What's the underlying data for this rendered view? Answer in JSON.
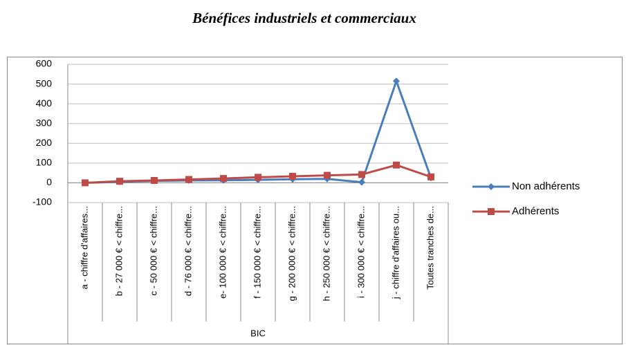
{
  "chart_data": {
    "type": "line",
    "title": "Bénéfices industriels et commerciaux",
    "categories": [
      "a - chiffre d'affaires...",
      "b - 27 000 € < chiffre...",
      "c - 50 000 € < chiffre...",
      "d - 76 000 € < chiffre...",
      "e- 100 000 € < chiffre...",
      "f - 150 000 € < chiffre...",
      "g - 200 000 € < chiffre...",
      "h - 250 000 € < chiffre...",
      "i - 300 000 € < chiffre...",
      "j - chiffre d'affaires ou...",
      "Toutes tranches de..."
    ],
    "group": "BIC",
    "series": [
      {
        "name": "Non adhérents",
        "color": "#4a7ebb",
        "marker": "diamond",
        "values": [
          0,
          5,
          10,
          12,
          13,
          15,
          18,
          20,
          3,
          515,
          25
        ]
      },
      {
        "name": "Adhérents",
        "color": "#be4b48",
        "marker": "square",
        "values": [
          0,
          8,
          12,
          17,
          22,
          28,
          33,
          38,
          42,
          90,
          30
        ]
      }
    ],
    "ylim": [
      -100,
      600
    ],
    "yticks": [
      -100,
      0,
      100,
      200,
      300,
      400,
      500,
      600
    ],
    "grid": true,
    "legend": "right"
  }
}
